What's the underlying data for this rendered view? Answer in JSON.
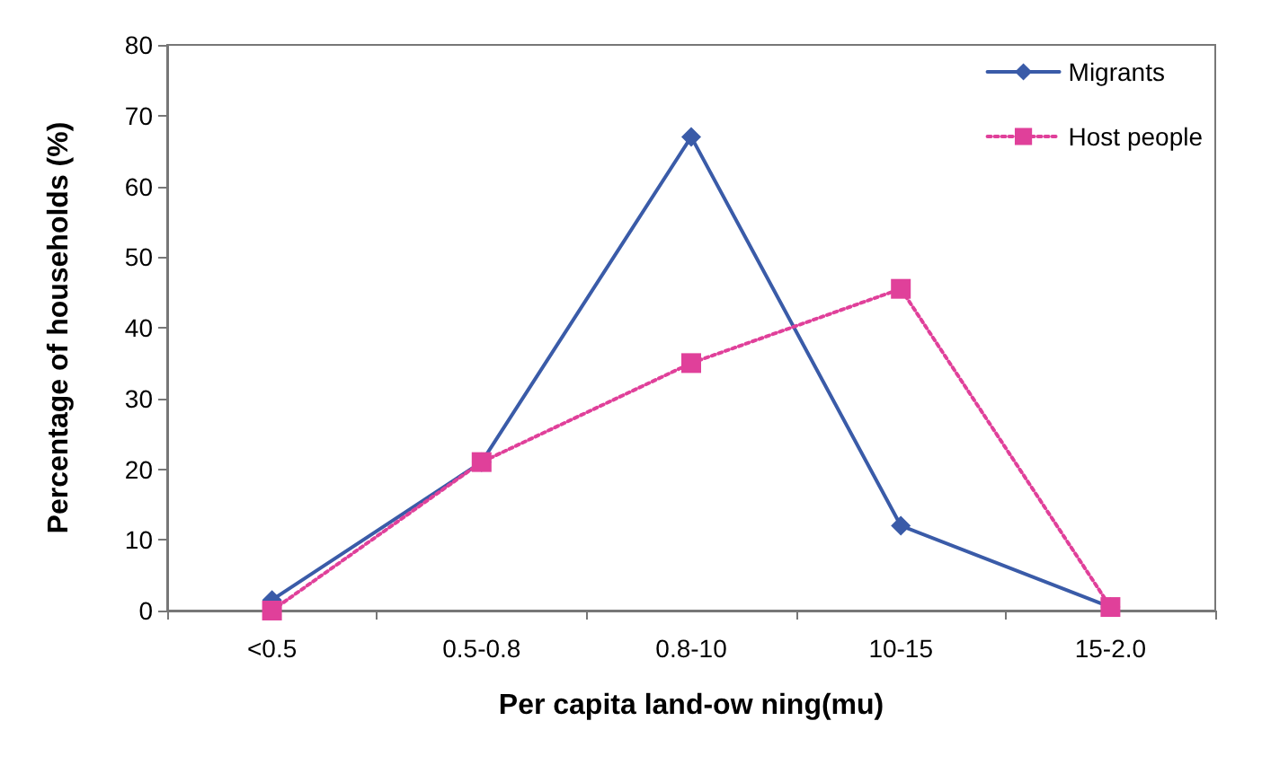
{
  "chart_data": {
    "type": "line",
    "xlabel": "Per capita land-ow ning(mu)",
    "ylabel": "Percentage of households (%)",
    "categories": [
      "<0.5",
      "0.5-0.8",
      "0.8-10",
      "10-15",
      "15-2.0"
    ],
    "series": [
      {
        "name": "Migrants",
        "color": "#3a5ba8",
        "marker": "diamond",
        "line_style": "solid",
        "values": [
          1.5,
          21,
          67,
          12,
          0.5
        ]
      },
      {
        "name": "Host people",
        "color": "#e0409a",
        "marker": "square",
        "line_style": "dotted",
        "values": [
          0,
          21,
          35,
          45.5,
          0.5
        ]
      }
    ],
    "ylim": [
      0,
      80
    ],
    "yticks": [
      0,
      10,
      20,
      30,
      40,
      50,
      60,
      70,
      80
    ],
    "grid": false,
    "legend": "top right"
  }
}
